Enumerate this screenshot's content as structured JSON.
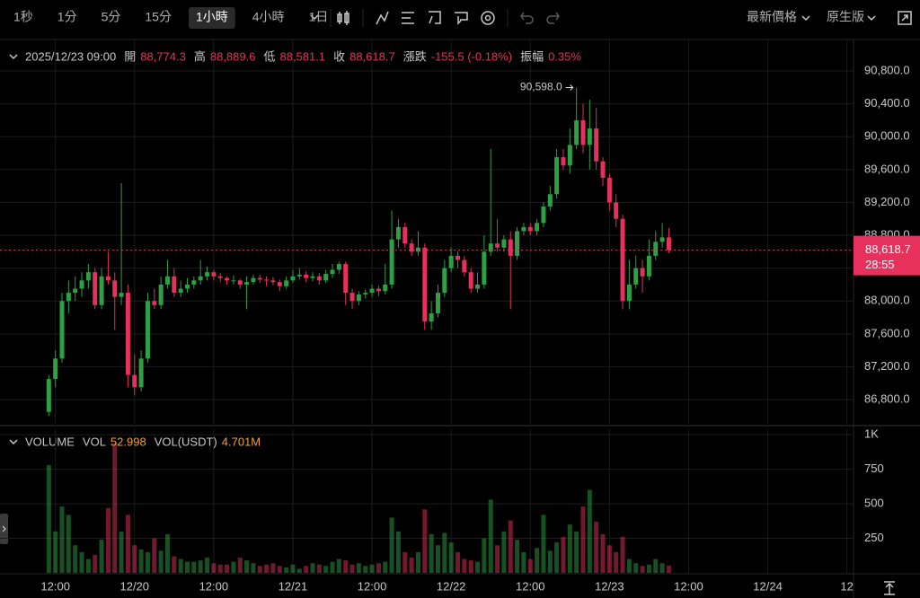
{
  "toolbar": {
    "intervals": [
      "1秒",
      "1分",
      "5分",
      "15分",
      "1小時",
      "4小時",
      "1日"
    ],
    "active": 4,
    "price_type": "最新價格",
    "view": "原生版"
  },
  "chart_data": {
    "type": "candlestick",
    "legend": {
      "time": "2025/12/23 09:00",
      "items": [
        {
          "label": "開",
          "value": "88,774.3"
        },
        {
          "label": "高",
          "value": "88,889.6"
        },
        {
          "label": "低",
          "value": "88,581.1"
        },
        {
          "label": "收",
          "value": "88,618.7"
        },
        {
          "label": "漲跌",
          "value": "-155.5 (-0.18%)"
        },
        {
          "label": "振幅",
          "value": "0.35%"
        }
      ]
    },
    "annotation": "90,598.0",
    "last_price": {
      "price": "88,618.7",
      "countdown": "28:55"
    },
    "up_color": "#2ea043",
    "down_color": "#e5315b",
    "grid": true,
    "candles": [
      [
        86650,
        87100,
        86600,
        87050
      ],
      [
        87050,
        87400,
        86950,
        87300
      ],
      [
        87300,
        88100,
        87250,
        88000
      ],
      [
        88000,
        88250,
        87850,
        88100
      ],
      [
        88100,
        88300,
        88000,
        88150
      ],
      [
        88150,
        88350,
        88050,
        88250
      ],
      [
        88250,
        88450,
        88150,
        88350
      ],
      [
        88350,
        88400,
        87900,
        87950
      ],
      [
        87950,
        88400,
        87900,
        88300
      ],
      [
        88300,
        88600,
        88200,
        88250
      ],
      [
        88250,
        88350,
        87650,
        88050
      ],
      [
        88050,
        89434,
        87950,
        88100
      ],
      [
        88100,
        88200,
        86950,
        87100
      ],
      [
        87100,
        87350,
        86850,
        86950
      ],
      [
        86950,
        87400,
        86900,
        87300
      ],
      [
        87300,
        88100,
        87250,
        88000
      ],
      [
        88000,
        88150,
        87900,
        87950
      ],
      [
        87950,
        88300,
        87900,
        88200
      ],
      [
        88200,
        88500,
        88150,
        88300
      ],
      [
        88300,
        88400,
        88050,
        88100
      ],
      [
        88100,
        88250,
        88050,
        88150
      ],
      [
        88150,
        88280,
        88100,
        88200
      ],
      [
        88200,
        88300,
        88150,
        88250
      ],
      [
        88250,
        88500,
        88200,
        88300
      ],
      [
        88300,
        88420,
        88250,
        88350
      ],
      [
        88350,
        88380,
        88250,
        88300
      ],
      [
        88300,
        88340,
        88230,
        88280
      ],
      [
        88280,
        88300,
        88200,
        88250
      ],
      [
        88250,
        88310,
        88200,
        88250
      ],
      [
        88250,
        88270,
        88150,
        88200
      ],
      [
        88200,
        88300,
        87900,
        88230
      ],
      [
        88230,
        88320,
        88200,
        88280
      ],
      [
        88280,
        88320,
        88220,
        88260
      ],
      [
        88260,
        88300,
        88180,
        88250
      ],
      [
        88250,
        88290,
        88190,
        88230
      ],
      [
        88230,
        88260,
        88120,
        88180
      ],
      [
        88180,
        88300,
        88150,
        88250
      ],
      [
        88250,
        88380,
        88220,
        88300
      ],
      [
        88300,
        88400,
        88260,
        88320
      ],
      [
        88320,
        88360,
        88230,
        88280
      ],
      [
        88280,
        88350,
        88240,
        88300
      ],
      [
        88300,
        88340,
        88200,
        88250
      ],
      [
        88250,
        88380,
        88220,
        88330
      ],
      [
        88330,
        88450,
        88280,
        88380
      ],
      [
        88380,
        88480,
        88330,
        88450
      ],
      [
        88450,
        88480,
        87950,
        88100
      ],
      [
        88100,
        88150,
        87900,
        88000
      ],
      [
        88000,
        88120,
        87950,
        88080
      ],
      [
        88080,
        88140,
        88030,
        88100
      ],
      [
        88100,
        88200,
        88050,
        88150
      ],
      [
        88150,
        88190,
        88060,
        88120
      ],
      [
        88120,
        88450,
        88080,
        88200
      ],
      [
        88200,
        89100,
        88150,
        88750
      ],
      [
        88750,
        89000,
        88650,
        88900
      ],
      [
        88900,
        88950,
        88650,
        88700
      ],
      [
        88700,
        88750,
        88550,
        88600
      ],
      [
        88600,
        88850,
        88550,
        88650
      ],
      [
        88650,
        88700,
        87650,
        87750
      ],
      [
        87750,
        88000,
        87650,
        87850
      ],
      [
        87850,
        88200,
        87800,
        88100
      ],
      [
        88100,
        88500,
        88050,
        88400
      ],
      [
        88400,
        88650,
        88350,
        88550
      ],
      [
        88550,
        88600,
        88400,
        88500
      ],
      [
        88500,
        88550,
        88300,
        88350
      ],
      [
        88350,
        88400,
        88100,
        88150
      ],
      [
        88150,
        88350,
        88100,
        88200
      ],
      [
        88200,
        88800,
        88150,
        88600
      ],
      [
        88600,
        89850,
        88550,
        88700
      ],
      [
        88700,
        89000,
        88600,
        88650
      ],
      [
        88650,
        88800,
        88600,
        88750
      ],
      [
        88750,
        88850,
        87900,
        88550
      ],
      [
        88550,
        88900,
        88500,
        88850
      ],
      [
        88850,
        88950,
        88800,
        88900
      ],
      [
        88900,
        88950,
        88800,
        88850
      ],
      [
        88850,
        89000,
        88800,
        88950
      ],
      [
        88950,
        89200,
        88900,
        89150
      ],
      [
        89150,
        89400,
        89100,
        89300
      ],
      [
        89300,
        89850,
        89250,
        89750
      ],
      [
        89750,
        89850,
        89600,
        89650
      ],
      [
        89650,
        90100,
        89550,
        89900
      ],
      [
        89900,
        90598,
        89850,
        90200
      ],
      [
        90200,
        90400,
        89800,
        89900
      ],
      [
        89900,
        90450,
        89600,
        90100
      ],
      [
        90100,
        90350,
        89600,
        89700
      ],
      [
        89700,
        89750,
        89400,
        89500
      ],
      [
        89500,
        89550,
        89100,
        89200
      ],
      [
        89200,
        89300,
        88900,
        89000
      ],
      [
        89000,
        89050,
        87900,
        88000
      ],
      [
        88000,
        88500,
        87900,
        88200
      ],
      [
        88200,
        88550,
        88150,
        88400
      ],
      [
        88400,
        88500,
        88100,
        88300
      ],
      [
        88300,
        88750,
        88250,
        88550
      ],
      [
        88550,
        88850,
        88500,
        88720
      ],
      [
        88720,
        88950,
        88650,
        88774.3
      ],
      [
        88774.3,
        88889.6,
        88581.1,
        88618.7
      ]
    ],
    "xlim": [
      -7.4,
      122
    ],
    "xticks": [
      {
        "value": 1,
        "label": "12:00"
      },
      {
        "value": 13,
        "label": "12/20"
      },
      {
        "value": 25,
        "label": "12:00"
      },
      {
        "value": 37,
        "label": "12/21"
      },
      {
        "value": 49,
        "label": "12:00"
      },
      {
        "value": 61,
        "label": "12/22"
      },
      {
        "value": 73,
        "label": "12:00"
      },
      {
        "value": 85,
        "label": "12/23"
      },
      {
        "value": 97,
        "label": "12:00"
      },
      {
        "value": 109,
        "label": "12/24"
      },
      {
        "value": 121,
        "label": "12"
      }
    ],
    "ylim": [
      86505,
      91172
    ],
    "yticks": [
      {
        "value": 86800,
        "label": "86,800.0"
      },
      {
        "value": 87200,
        "label": "87,200.0"
      },
      {
        "value": 87600,
        "label": "87,600.0"
      },
      {
        "value": 88000,
        "label": "88,000.0"
      },
      {
        "value": 88400,
        "label": "88,400.0"
      },
      {
        "value": 88800,
        "label": "88,800.0"
      },
      {
        "value": 89200,
        "label": "89,200.0"
      },
      {
        "value": 89600,
        "label": "89,600.0"
      },
      {
        "value": 90000,
        "label": "90,000.0"
      },
      {
        "value": 90400,
        "label": "90,400.0"
      },
      {
        "value": 90800,
        "label": "90,800.0"
      }
    ],
    "volume": {
      "title": "VOLUME",
      "items": [
        {
          "label": "VOL",
          "value": "52.998"
        },
        {
          "label": "VOL(USDT)",
          "value": "4.701M"
        }
      ],
      "values": [
        780,
        300,
        480,
        420,
        200,
        150,
        100,
        130,
        240,
        470,
        940,
        300,
        420,
        200,
        170,
        150,
        250,
        160,
        280,
        120,
        100,
        80,
        80,
        90,
        110,
        70,
        60,
        60,
        80,
        110,
        90,
        70,
        50,
        60,
        70,
        50,
        40,
        60,
        30,
        50,
        70,
        60,
        50,
        80,
        100,
        90,
        60,
        70,
        50,
        60,
        70,
        80,
        400,
        300,
        150,
        110,
        150,
        460,
        280,
        200,
        290,
        220,
        150,
        100,
        90,
        80,
        250,
        530,
        200,
        300,
        380,
        240,
        150,
        100,
        180,
        420,
        160,
        220,
        260,
        350,
        300,
        480,
        600,
        370,
        280,
        200,
        150,
        260,
        100,
        70,
        50,
        60,
        100,
        70,
        52.998
      ],
      "ylim": [
        0,
        1040
      ],
      "yticks": [
        {
          "value": 1000,
          "label": "1K"
        },
        750,
        500,
        250
      ]
    }
  }
}
